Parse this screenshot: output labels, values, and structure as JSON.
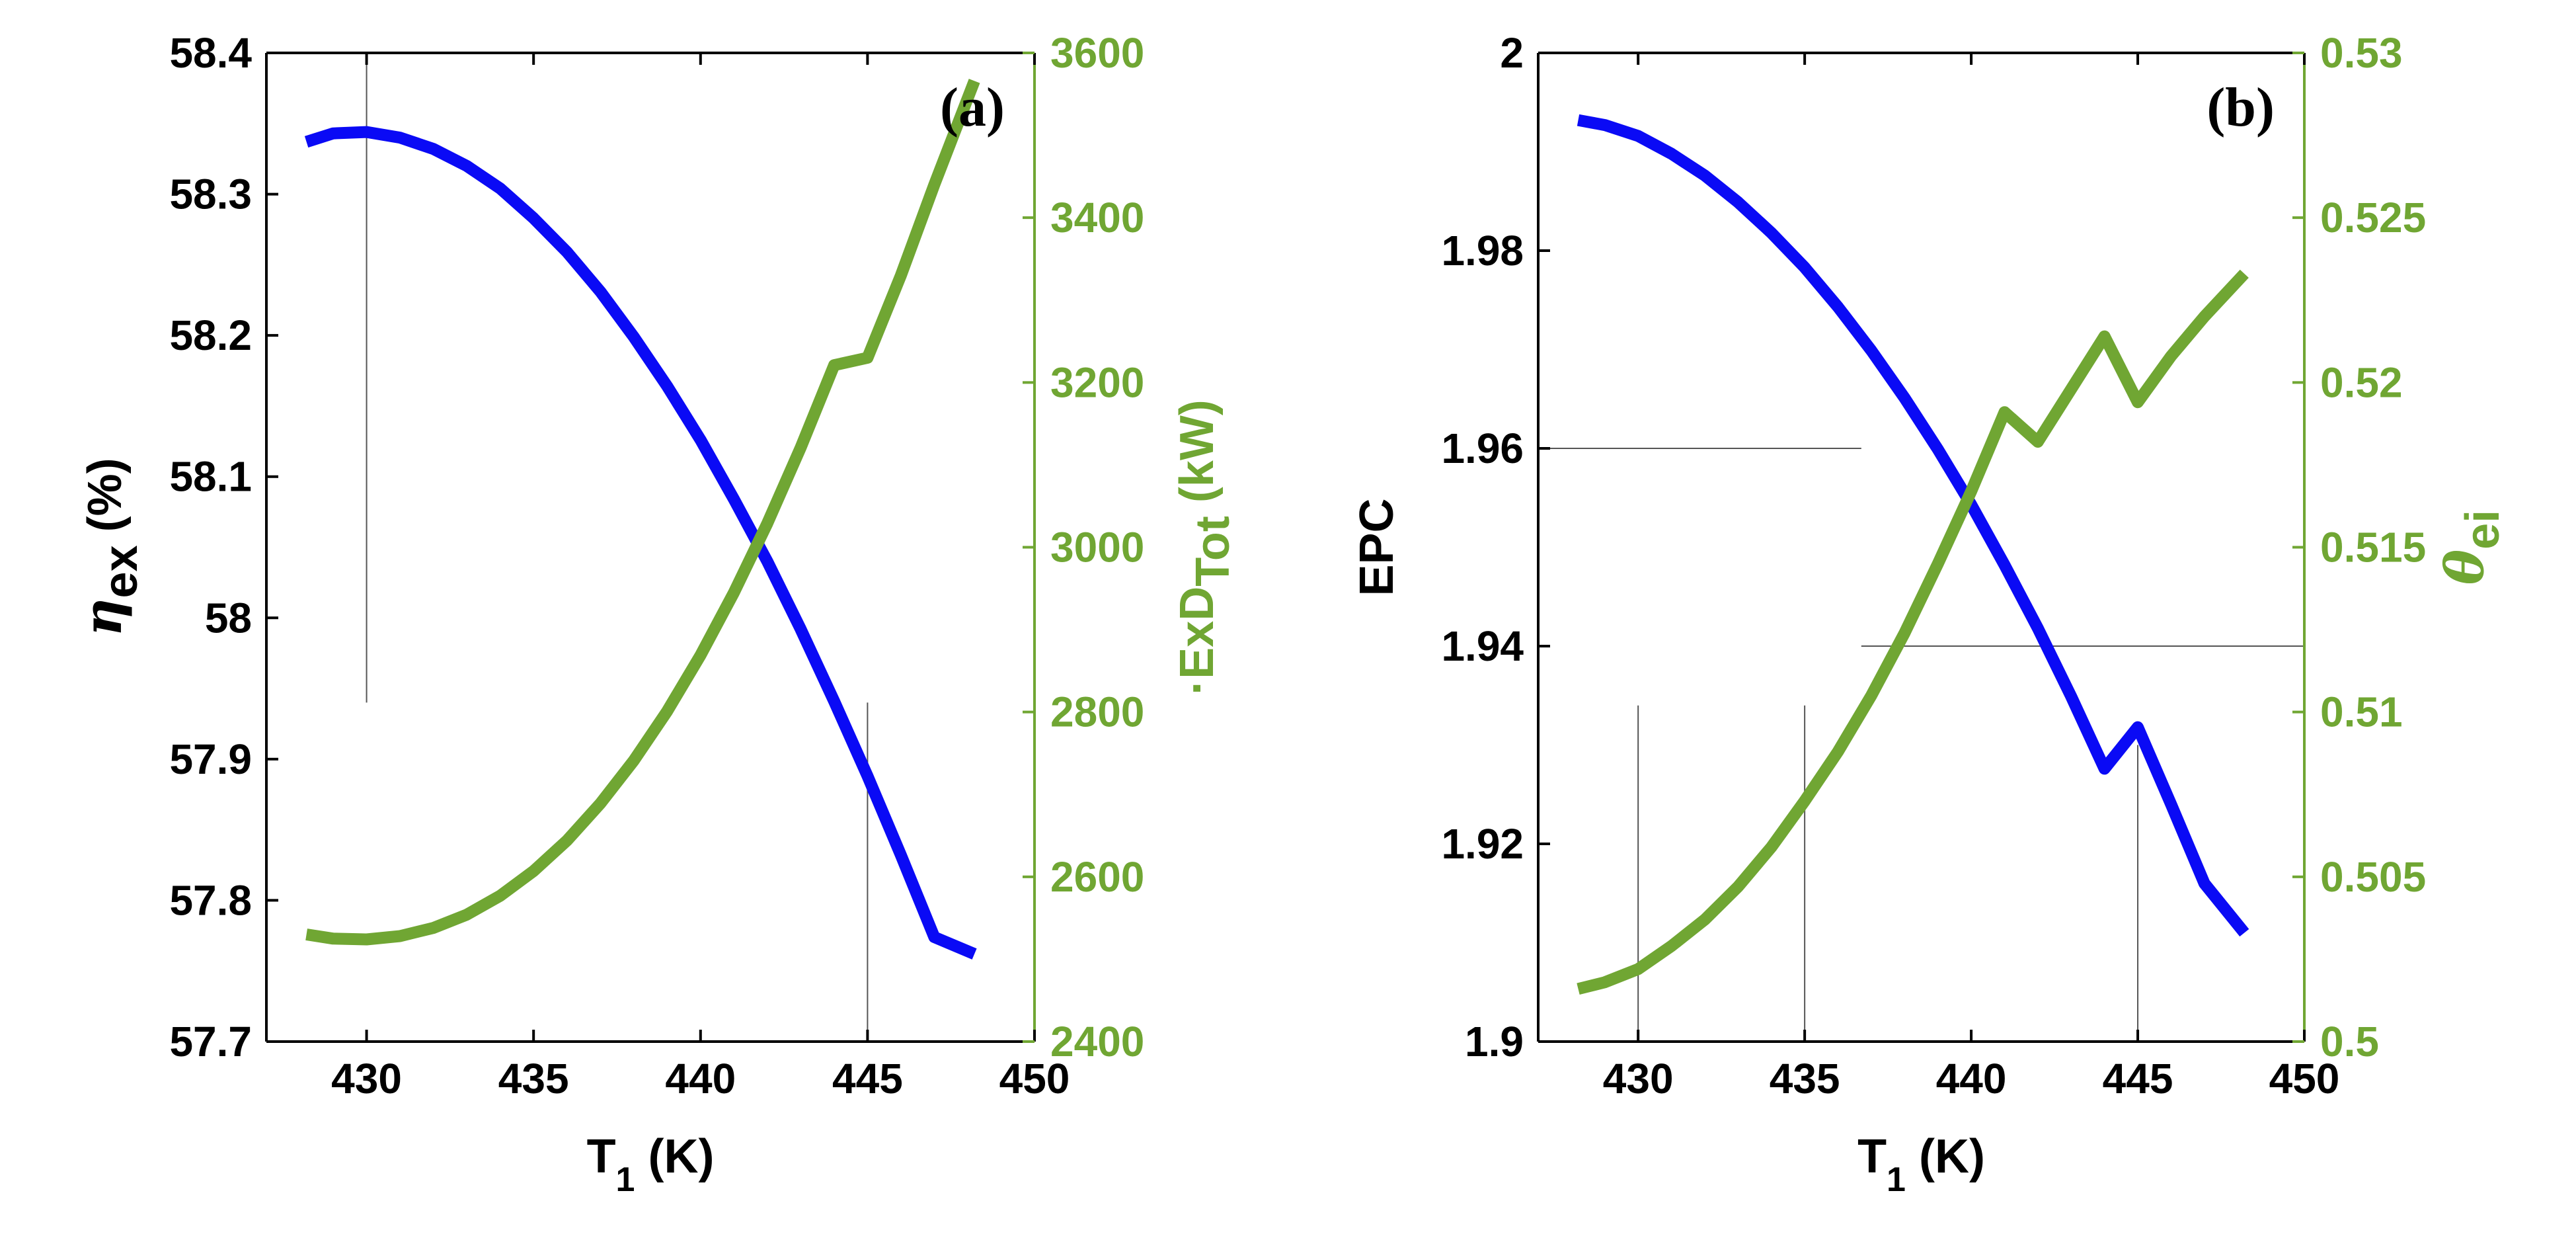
{
  "colors": {
    "blue": "#0A0AF5",
    "green": "#70A633",
    "black": "#000000",
    "gridline": "#555555"
  },
  "chart_data": [
    {
      "type": "line",
      "panel_label": "(a)",
      "xlabel": {
        "main": "T",
        "sub": "1",
        "unit": " (K)"
      },
      "xlim": [
        427,
        450
      ],
      "xticks": [
        430,
        435,
        440,
        445,
        450
      ],
      "xtick_labels": [
        "430",
        "435",
        "440",
        "445",
        "450"
      ],
      "left_axis": {
        "label": {
          "symbol": "η",
          "sub": "ex",
          "unit": " (%)"
        },
        "ylim": [
          57.7,
          58.4
        ],
        "ticks": [
          57.7,
          57.8,
          57.9,
          58.0,
          58.1,
          58.2,
          58.3,
          58.4
        ],
        "tick_labels": [
          "57.7",
          "57.8",
          "57.9",
          "58",
          "58.1",
          "58.2",
          "58.3",
          "58.4"
        ]
      },
      "right_axis": {
        "label": {
          "main": "ExD",
          "sub": "Tot",
          "unit": " (kW)",
          "dot": "·"
        },
        "ylim": [
          2400,
          3600
        ],
        "ticks": [
          2400,
          2600,
          2800,
          3000,
          3200,
          3400,
          3600
        ],
        "tick_labels": [
          "2400",
          "2600",
          "2800",
          "3000",
          "3200",
          "3400",
          "3600"
        ]
      },
      "series": [
        {
          "name": "η_ex",
          "axis": "left",
          "color": "blue",
          "x": [
            428.2,
            429.0,
            430.0,
            431.0,
            432.0,
            433.0,
            434.0,
            435.0,
            436.0,
            437.0,
            438.0,
            439.0,
            440.0,
            441.0,
            442.0,
            443.0,
            444.0,
            445.0,
            446.0,
            447.0,
            448.2
          ],
          "y": [
            58.337,
            58.343,
            58.344,
            58.34,
            58.332,
            58.32,
            58.304,
            58.283,
            58.259,
            58.231,
            58.199,
            58.164,
            58.126,
            58.084,
            58.04,
            57.992,
            57.941,
            57.888,
            57.832,
            57.774,
            57.762
          ]
        },
        {
          "name": "ExD_Tot",
          "axis": "right",
          "color": "green",
          "x": [
            428.2,
            429.0,
            430.0,
            431.0,
            432.0,
            433.0,
            434.0,
            435.0,
            436.0,
            437.0,
            438.0,
            439.0,
            440.0,
            441.0,
            442.0,
            443.0,
            444.0,
            445.0,
            446.0,
            447.0,
            448.2
          ],
          "y": [
            2530,
            2525,
            2524,
            2528,
            2538,
            2554,
            2577,
            2607,
            2644,
            2689,
            2741,
            2801,
            2869,
            2945,
            3029,
            3121,
            3221,
            3230,
            3330,
            3440,
            3566
          ]
        }
      ],
      "guide_lines": [
        {
          "orientation": "vertical",
          "x": 430,
          "from": 57.94,
          "to": 58.4,
          "axis": "left"
        },
        {
          "orientation": "vertical",
          "x": 445,
          "from": 57.7,
          "to": 57.94,
          "axis": "left"
        }
      ]
    },
    {
      "type": "line",
      "panel_label": "(b)",
      "xlabel": {
        "main": "T",
        "sub": "1",
        "unit": " (K)"
      },
      "xlim": [
        427,
        450
      ],
      "xticks": [
        430,
        435,
        440,
        445,
        450
      ],
      "xtick_labels": [
        "430",
        "435",
        "440",
        "445",
        "450"
      ],
      "left_axis": {
        "label": {
          "main": "EPC"
        },
        "ylim": [
          1.9,
          2.0
        ],
        "ticks": [
          1.9,
          1.92,
          1.94,
          1.96,
          1.98,
          2.0
        ],
        "tick_labels": [
          "1.9",
          "1.92",
          "1.94",
          "1.96",
          "1.98",
          "2"
        ]
      },
      "right_axis": {
        "label": {
          "symbol": "θ",
          "sub": "ei"
        },
        "ylim": [
          0.5,
          0.53
        ],
        "ticks": [
          0.5,
          0.505,
          0.51,
          0.515,
          0.52,
          0.525,
          0.53
        ],
        "tick_labels": [
          "0.5",
          "0.505",
          "0.51",
          "0.515",
          "0.52",
          "0.525",
          "0.53"
        ]
      },
      "series": [
        {
          "name": "EPC",
          "axis": "left",
          "color": "blue",
          "x": [
            428.2,
            429.0,
            430.0,
            431.0,
            432.0,
            433.0,
            434.0,
            435.0,
            436.0,
            437.0,
            438.0,
            439.0,
            440.0,
            441.0,
            442.0,
            443.0,
            444.0,
            445.0,
            446.0,
            447.0,
            448.2
          ],
          "y": [
            1.9932,
            1.9927,
            1.9916,
            1.9898,
            1.9876,
            1.9849,
            1.9818,
            1.9783,
            1.9743,
            1.9699,
            1.9651,
            1.9599,
            1.9543,
            1.9482,
            1.9418,
            1.9349,
            1.9276,
            1.9318,
            1.924,
            1.916,
            1.911
          ]
        },
        {
          "name": "θ_ei",
          "axis": "right",
          "color": "green",
          "x": [
            428.2,
            429.0,
            430.0,
            431.0,
            432.0,
            433.0,
            434.0,
            435.0,
            436.0,
            437.0,
            438.0,
            439.0,
            440.0,
            441.0,
            442.0,
            443.0,
            444.0,
            445.0,
            446.0,
            447.0,
            448.2
          ],
          "y": [
            0.5016,
            0.5018,
            0.5022,
            0.5029,
            0.5037,
            0.5047,
            0.5059,
            0.5073,
            0.5088,
            0.5105,
            0.5124,
            0.5145,
            0.5167,
            0.5191,
            0.5182,
            0.5198,
            0.5214,
            0.5194,
            0.5208,
            0.522,
            0.5233
          ]
        }
      ],
      "guide_lines": [
        {
          "orientation": "horizontal",
          "y": 1.96,
          "from": 427,
          "to": 436.7,
          "axis": "left"
        },
        {
          "orientation": "horizontal",
          "y": 1.94,
          "from": 436.7,
          "to": 450,
          "axis": "left"
        },
        {
          "orientation": "vertical",
          "x": 430,
          "from": 1.9,
          "to": 1.934,
          "axis": "left"
        },
        {
          "orientation": "vertical",
          "x": 435,
          "from": 1.9,
          "to": 1.934,
          "axis": "left"
        },
        {
          "orientation": "vertical",
          "x": 445,
          "from": 1.9,
          "to": 1.93,
          "axis": "left"
        }
      ]
    }
  ]
}
